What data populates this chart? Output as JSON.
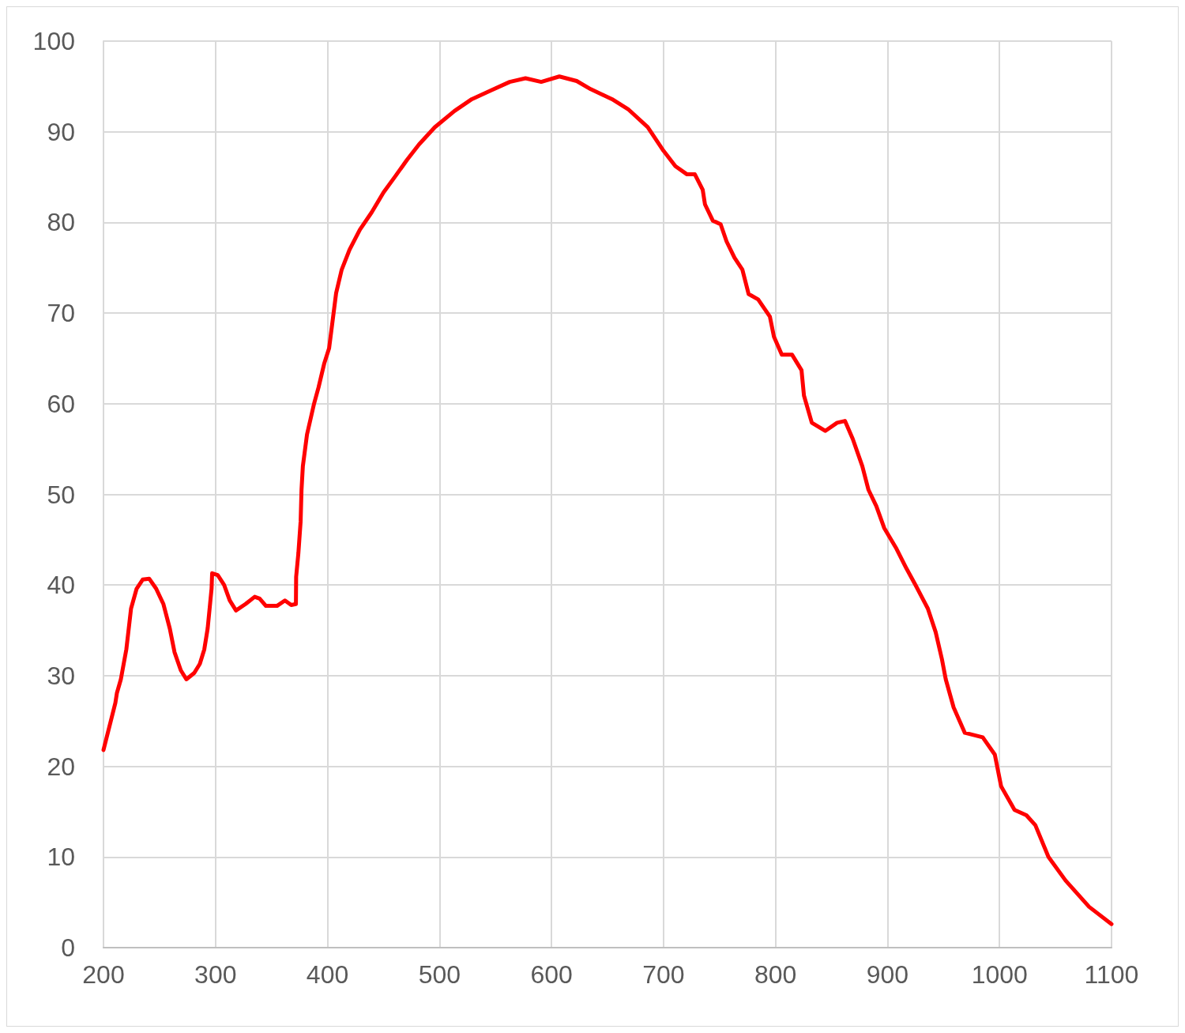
{
  "chart_data": {
    "type": "line",
    "x": [
      200,
      210.6,
      212,
      215.5,
      220.4,
      224.6,
      229.6,
      235,
      240.8,
      247,
      253.5,
      259.2,
      263.4,
      269,
      274,
      281,
      286,
      290,
      293,
      296.5,
      297,
      302,
      307.7,
      312.7,
      318.3,
      326.8,
      335,
      339.4,
      345,
      354.9,
      362,
      367.6,
      371.8,
      372,
      374,
      376,
      376.8,
      378,
      381.7,
      388,
      392,
      397,
      401.4,
      404.2,
      407.7,
      412.7,
      419.7,
      428.9,
      439.4,
      450,
      460.6,
      471,
      481.7,
      495.8,
      513.4,
      528.9,
      545,
      562.7,
      576.8,
      590.8,
      607,
      622.5,
      635,
      654,
      668.3,
      685.9,
      700,
      710.6,
      721,
      728,
      735,
      737,
      744,
      751,
      756.3,
      763.4,
      770.4,
      776,
      784.5,
      795,
      798.6,
      805.6,
      814.8,
      823.2,
      825.4,
      832.4,
      844.4,
      855,
      862,
      869,
      877.5,
      883,
      890,
      897,
      908,
      917,
      925,
      936,
      943,
      948.6,
      952,
      959,
      969,
      985,
      995.8,
      1001.4,
      1013.4,
      1024,
      1032,
      1043.7,
      1059,
      1080,
      1100
    ],
    "series": [
      {
        "color": "#ff0000",
        "values": [
          21.8,
          27,
          28.1,
          29.6,
          32.9,
          37.4,
          39.6,
          40.6,
          40.7,
          39.6,
          37.9,
          35.2,
          32.6,
          30.6,
          29.6,
          30.3,
          31.3,
          32.9,
          35.2,
          39.6,
          41.3,
          41.1,
          40,
          38.3,
          37.2,
          37.9,
          38.7,
          38.5,
          37.7,
          37.7,
          38.3,
          37.8,
          37.9,
          40.9,
          43.5,
          47,
          50.5,
          53.1,
          56.6,
          60,
          61.8,
          64.4,
          66.1,
          68.8,
          72.2,
          74.8,
          77,
          79.2,
          81.1,
          83.3,
          85.1,
          86.9,
          88.6,
          90.5,
          92.3,
          93.6,
          94.5,
          95.5,
          95.9,
          95.5,
          96.1,
          95.6,
          94.7,
          93.6,
          92.5,
          90.5,
          87.9,
          86.2,
          85.3,
          85.3,
          83.6,
          82,
          80.2,
          79.8,
          77.9,
          76.1,
          74.8,
          72.1,
          71.5,
          69.6,
          67.4,
          65.4,
          65.4,
          63.7,
          60.9,
          57.9,
          57,
          57.9,
          58.1,
          56.1,
          53.1,
          50.5,
          48.7,
          46.3,
          44,
          41.8,
          40,
          37.4,
          34.8,
          31.8,
          29.6,
          26.5,
          23.7,
          23.2,
          21.3,
          17.8,
          15.2,
          14.6,
          13.5,
          10,
          7.4,
          4.5,
          2.6
        ]
      }
    ],
    "xlim": [
      200,
      1100
    ],
    "xticks": [
      200,
      300,
      400,
      500,
      600,
      700,
      800,
      900,
      1000,
      1100
    ],
    "ylim": [
      0,
      100
    ],
    "yticks": [
      0,
      10,
      20,
      30,
      40,
      50,
      60,
      70,
      80,
      90,
      100
    ],
    "grid": true,
    "marker": "none",
    "line_style": "solid"
  }
}
